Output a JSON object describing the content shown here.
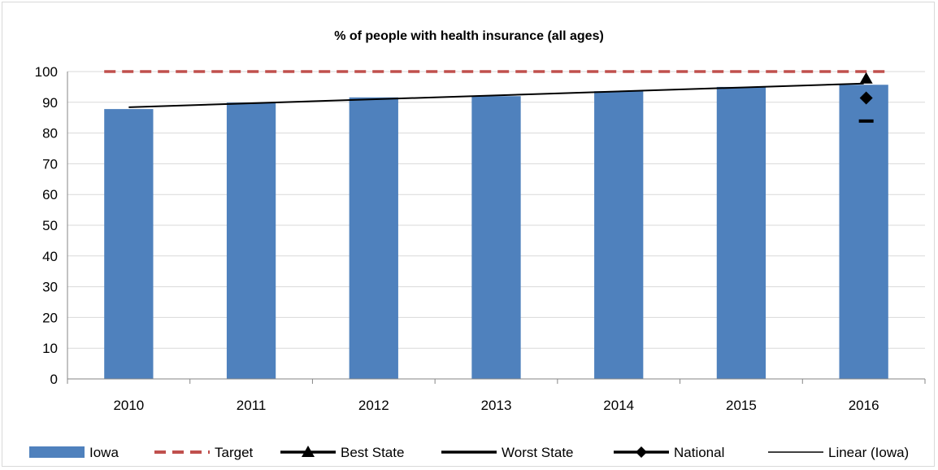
{
  "chart_data": {
    "type": "bar",
    "title": "% of people with health insurance (all ages)",
    "xlabel": "",
    "ylabel": "",
    "categories": [
      "2010",
      "2011",
      "2012",
      "2013",
      "2014",
      "2015",
      "2016"
    ],
    "ylim": [
      0,
      100
    ],
    "yticks": [
      0,
      10,
      20,
      30,
      40,
      50,
      60,
      70,
      80,
      90,
      100
    ],
    "grid": "horizontal",
    "legend_position": "bottom",
    "series": [
      {
        "name": "Iowa",
        "kind": "bar",
        "color": "#4f81bd",
        "values": [
          87.8,
          89.9,
          91.6,
          92.0,
          93.6,
          95.0,
          95.7
        ]
      },
      {
        "name": "Target",
        "kind": "dashed-line",
        "color": "#c0504d",
        "values": [
          100,
          100,
          100,
          100,
          100,
          100,
          100
        ]
      },
      {
        "name": "Best State",
        "kind": "triangle-marker",
        "color": "#000000",
        "values": [
          null,
          null,
          null,
          null,
          null,
          null,
          97.7
        ]
      },
      {
        "name": "Worst State",
        "kind": "dash-marker",
        "color": "#000000",
        "values": [
          null,
          null,
          null,
          null,
          null,
          null,
          83.9
        ]
      },
      {
        "name": "National",
        "kind": "diamond-marker",
        "color": "#000000",
        "values": [
          null,
          null,
          null,
          null,
          null,
          null,
          91.4
        ]
      },
      {
        "name": "Linear (Iowa)",
        "kind": "trendline",
        "color": "#000000",
        "values": [
          88.4,
          89.7,
          91.0,
          92.3,
          93.5,
          94.8,
          96.1
        ]
      }
    ]
  }
}
